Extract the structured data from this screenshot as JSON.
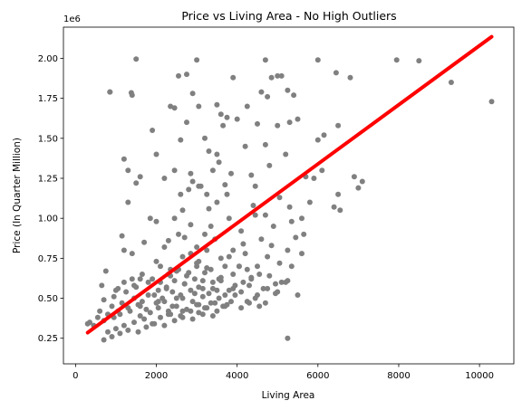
{
  "chart_data": {
    "type": "scatter",
    "title": "Price vs Living Area - No High Outliers",
    "xlabel": "Living Area",
    "ylabel": "Price (In Quarter Million)",
    "y_offset_label": "1e6",
    "xlim": [
      -300,
      10850
    ],
    "ylim": [
      90000,
      2195000
    ],
    "xticks": [
      0,
      2000,
      4000,
      6000,
      8000,
      10000
    ],
    "xtick_labels": [
      "0",
      "2000",
      "4000",
      "6000",
      "8000",
      "10000"
    ],
    "yticks": [
      250000,
      500000,
      750000,
      1000000,
      1250000,
      1500000,
      1750000,
      2000000
    ],
    "ytick_labels": [
      "0.25",
      "0.50",
      "0.75",
      "1.00",
      "1.25",
      "1.50",
      "1.75",
      "2.00"
    ],
    "grid": false,
    "colors": {
      "points": "#808080",
      "fit_line": "#ff0000"
    },
    "series": [
      {
        "kind": "points",
        "x": [
          850,
          1500,
          3000,
          4700,
          6000,
          7950,
          8500,
          1380,
          2550,
          2750,
          2900,
          3900,
          4600,
          4850,
          5000,
          5100,
          5250,
          6450,
          6800,
          9300,
          10300,
          1400,
          850,
          2350,
          2450,
          2750,
          3050,
          3600,
          3750,
          4000,
          4250,
          4500,
          5000,
          5300,
          5500,
          6000,
          6500,
          3500,
          3650,
          4750,
          5400,
          1200,
          1900,
          2000,
          2450,
          2600,
          3200,
          3300,
          3500,
          4200,
          4700,
          5200,
          6150,
          1300,
          1600,
          2200,
          2850,
          3100,
          3400,
          3550,
          3850,
          4350,
          4800,
          5900,
          6100,
          1300,
          1500,
          2600,
          2800,
          2900,
          3050,
          3250,
          3700,
          4450,
          5700,
          5800,
          6500,
          6900,
          7000,
          750,
          1150,
          1850,
          2450,
          2650,
          3300,
          3500,
          3750,
          4400,
          4700,
          5050,
          5300,
          6400,
          6550,
          7100,
          1200,
          2000,
          2300,
          2850,
          3200,
          3350,
          3800,
          4100,
          4450,
          4900,
          5350,
          5600,
          1400,
          1700,
          2200,
          2550,
          2700,
          3000,
          3450,
          3900,
          4150,
          4600,
          4850,
          5450,
          5650,
          1600,
          2000,
          2350,
          2650,
          2850,
          3050,
          3250,
          3600,
          3800,
          4050,
          4200,
          4500,
          4750,
          5050,
          5250,
          5600,
          650,
          1050,
          1400,
          2100,
          2300,
          2500,
          2750,
          3000,
          3200,
          3350,
          3550,
          3700,
          3900,
          4050,
          4250,
          4350,
          4550,
          4800,
          5100,
          5350,
          700,
          950,
          1250,
          1500,
          1800,
          2050,
          2250,
          2450,
          2700,
          2950,
          3150,
          3400,
          3600,
          3800,
          3950,
          4150,
          4350,
          4650,
          4950,
          5250,
          600,
          900,
          1150,
          1450,
          1650,
          1950,
          2150,
          2400,
          2600,
          2850,
          3050,
          3300,
          3500,
          3700,
          3900,
          4100,
          4300,
          4500,
          4750,
          5000,
          5200,
          5500,
          350,
          550,
          800,
          1050,
          1300,
          1550,
          1750,
          2000,
          2200,
          2400,
          2650,
          2900,
          3150,
          3350,
          3550,
          3750,
          3950,
          4250,
          4450,
          4700,
          4950,
          300,
          450,
          700,
          950,
          1100,
          1350,
          1600,
          1850,
          2050,
          2300,
          2500,
          2750,
          3000,
          3200,
          3450,
          3650,
          3850,
          4100,
          4300,
          4550,
          800,
          1000,
          1200,
          1450,
          1700,
          1900,
          2100,
          2350,
          2600,
          2850,
          3050,
          3250,
          3500,
          3700,
          700,
          900,
          1100,
          1300,
          1550,
          1750,
          1950,
          2200,
          2450,
          2650,
          2900,
          3150,
          3400,
          5250,
          1200,
          1650,
          2100,
          2550,
          3000,
          1000,
          1450,
          1900,
          2350,
          2800,
          3250,
          1800,
          2250,
          2700,
          3150,
          3600,
          1600,
          2050,
          2500,
          2950,
          3400,
          2300,
          2650,
          3050
        ],
        "y": [
          1790000,
          1995000,
          1990000,
          1990000,
          1990000,
          1990000,
          1985000,
          1785000,
          1890000,
          1900000,
          1780000,
          1880000,
          1790000,
          1880000,
          1890000,
          1890000,
          1800000,
          1910000,
          1880000,
          1850000,
          1730000,
          1770000,
          1790000,
          1700000,
          1690000,
          1600000,
          1700000,
          1650000,
          1630000,
          1620000,
          1700000,
          1590000,
          1580000,
          1600000,
          1620000,
          1490000,
          1580000,
          1710000,
          1580000,
          1760000,
          1770000,
          1370000,
          1550000,
          1400000,
          1300000,
          1490000,
          1500000,
          1420000,
          1400000,
          1450000,
          1460000,
          1400000,
          1520000,
          1300000,
          1260000,
          1250000,
          1280000,
          1200000,
          1300000,
          1350000,
          1280000,
          1270000,
          1330000,
          1250000,
          1300000,
          1100000,
          1220000,
          1150000,
          1180000,
          1230000,
          1200000,
          1150000,
          1210000,
          1200000,
          1260000,
          1100000,
          1150000,
          1260000,
          1190000,
          670000,
          890000,
          1000000,
          1000000,
          1050000,
          1060000,
          1100000,
          1150000,
          1080000,
          1020000,
          1130000,
          1070000,
          1070000,
          1050000,
          1230000,
          800000,
          980000,
          860000,
          960000,
          900000,
          950000,
          1000000,
          920000,
          1020000,
          950000,
          980000,
          1000000,
          780000,
          850000,
          820000,
          900000,
          880000,
          820000,
          870000,
          800000,
          840000,
          870000,
          830000,
          880000,
          900000,
          620000,
          730000,
          680000,
          760000,
          780000,
          730000,
          800000,
          750000,
          760000,
          700000,
          780000,
          700000,
          760000,
          720000,
          800000,
          780000,
          580000,
          560000,
          620000,
          600000,
          650000,
          670000,
          640000,
          700000,
          660000,
          680000,
          620000,
          700000,
          650000,
          700000,
          680000,
          620000,
          650000,
          640000,
          600000,
          700000,
          490000,
          510000,
          540000,
          570000,
          600000,
          550000,
          570000,
          610000,
          590000,
          620000,
          560000,
          600000,
          610000,
          550000,
          580000,
          600000,
          630000,
          560000,
          590000,
          610000,
          420000,
          450000,
          470000,
          500000,
          480000,
          520000,
          500000,
          540000,
          520000,
          550000,
          570000,
          530000,
          550000,
          520000,
          560000,
          540000,
          580000,
          520000,
          560000,
          540000,
          600000,
          520000,
          350000,
          380000,
          400000,
          420000,
          440000,
          460000,
          430000,
          470000,
          480000,
          450000,
          500000,
          480000,
          510000,
          470000,
          500000,
          460000,
          520000,
          480000,
          500000,
          470000,
          530000,
          340000,
          330000,
          360000,
          380000,
          400000,
          420000,
          390000,
          410000,
          440000,
          420000,
          450000,
          430000,
          460000,
          440000,
          470000,
          450000,
          480000,
          440000,
          470000,
          450000,
          290000,
          310000,
          330000,
          350000,
          370000,
          340000,
          380000,
          400000,
          390000,
          420000,
          410000,
          440000,
          420000,
          450000,
          240000,
          260000,
          280000,
          300000,
          290000,
          320000,
          340000,
          330000,
          360000,
          380000,
          370000,
          400000,
          390000,
          250000,
          600000,
          650000,
          700000,
          680000,
          720000,
          550000,
          580000,
          620000,
          640000,
          660000,
          690000,
          520000,
          560000,
          590000,
          610000,
          630000,
          450000,
          480000,
          500000,
          530000,
          560000,
          400000,
          420000,
          460000
        ]
      },
      {
        "kind": "fit_line",
        "x": [
          300,
          10300
        ],
        "y": [
          285000,
          2135000
        ]
      }
    ]
  }
}
